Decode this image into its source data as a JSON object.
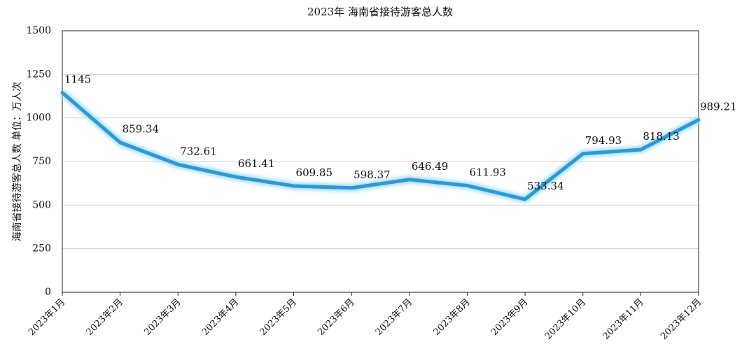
{
  "chart_data": {
    "type": "line",
    "title": "2023年 海南省接待游客总人数",
    "y_label": "海南省接待游客总人数    单位：万人次",
    "categories": [
      "2023年1月",
      "2023年2月",
      "2023年3月",
      "2023年4月",
      "2023年5月",
      "2023年6月",
      "2023年7月",
      "2023年8月",
      "2023年9月",
      "2023年10月",
      "2023年11月",
      "2023年12月"
    ],
    "values": [
      1145,
      859.34,
      732.61,
      661.41,
      609.85,
      598.37,
      646.49,
      611.93,
      533.34,
      794.93,
      818.13,
      989.21
    ],
    "color": "#2e9ad5",
    "ylim": [
      0,
      1500
    ],
    "yticks": [
      0,
      250,
      500,
      750,
      1000,
      1250,
      1500
    ],
    "grid": true
  }
}
